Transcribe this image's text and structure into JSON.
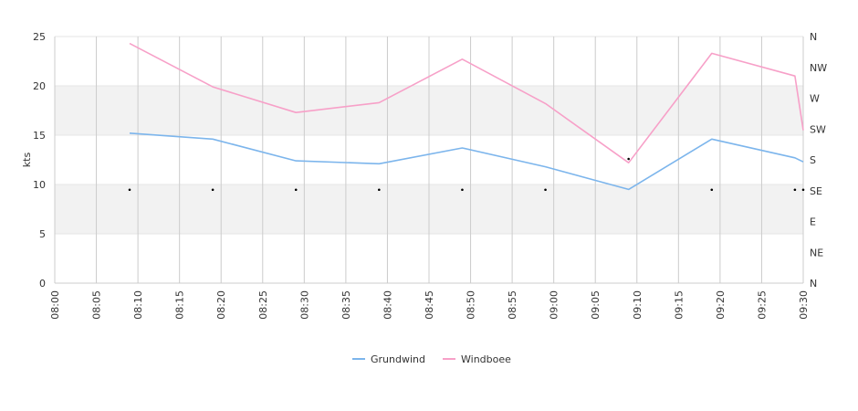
{
  "chart_data": {
    "type": "line",
    "ylabel": "kts",
    "ylim": [
      0,
      25
    ],
    "y_ticks": [
      "0",
      "5",
      "10",
      "15",
      "20",
      "25"
    ],
    "x_ticks": [
      "08:00",
      "08:05",
      "08:10",
      "08:15",
      "08:20",
      "08:25",
      "08:30",
      "08:35",
      "08:40",
      "08:45",
      "08:50",
      "08:55",
      "09:00",
      "09:05",
      "09:10",
      "09:15",
      "09:20",
      "09:25",
      "09:30"
    ],
    "right_axis_ticks": [
      "N",
      "NE",
      "E",
      "SE",
      "S",
      "SW",
      "W",
      "NW",
      "N"
    ],
    "grid": true,
    "alternating_bands": true,
    "legend_position": "bottom",
    "series": [
      {
        "name": "Grundwind",
        "color": "#7cb5ec",
        "x": [
          "08:09",
          "08:19",
          "08:29",
          "08:39",
          "08:49",
          "08:59",
          "09:09",
          "09:19",
          "09:29",
          "09:30"
        ],
        "values": [
          15.2,
          14.6,
          12.4,
          12.1,
          13.7,
          11.8,
          9.5,
          14.6,
          12.7,
          12.3
        ]
      },
      {
        "name": "Windboee",
        "color": "#f7a0c8",
        "x": [
          "08:09",
          "08:19",
          "08:29",
          "08:39",
          "08:49",
          "08:59",
          "09:09",
          "09:19",
          "09:29",
          "09:30"
        ],
        "values": [
          24.3,
          19.9,
          17.3,
          18.3,
          22.7,
          18.2,
          12.2,
          23.3,
          21.0,
          15.5
        ]
      }
    ],
    "direction_markers": {
      "x": [
        "08:09",
        "08:19",
        "08:29",
        "08:39",
        "08:49",
        "08:59",
        "09:09",
        "09:19",
        "09:29",
        "09:30"
      ],
      "direction": [
        "SE",
        "SE",
        "SE",
        "SE",
        "SE",
        "SE",
        "S",
        "SE",
        "SE",
        "SE"
      ]
    }
  }
}
